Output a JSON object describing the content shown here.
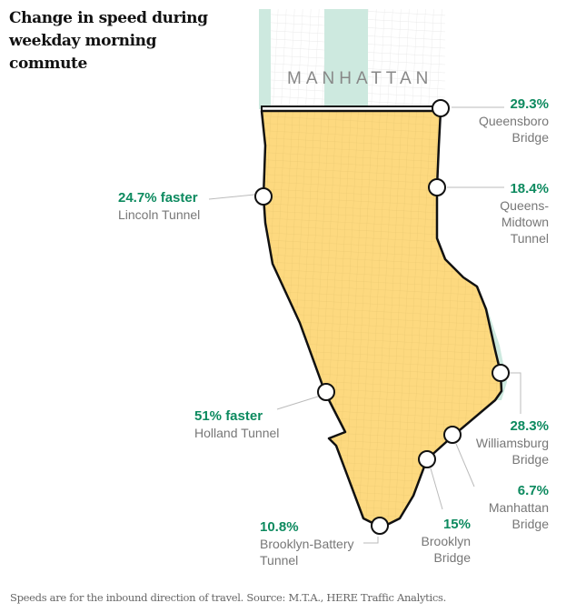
{
  "title": "Change in speed during weekday morning commute",
  "map_label": "MANHATTAN",
  "colors": {
    "zone": "#fdd97f",
    "park": "#cde9df",
    "accent": "#0d8a5f"
  },
  "crossings": [
    {
      "id": "queensboro",
      "pct": "29.3%",
      "name": [
        "Queensboro",
        "Bridge"
      ]
    },
    {
      "id": "queens-midtown",
      "pct": "18.4%",
      "name": [
        "Queens-",
        "Midtown",
        "Tunnel"
      ]
    },
    {
      "id": "lincoln",
      "pct": "24.7% faster",
      "name": [
        "Lincoln Tunnel"
      ]
    },
    {
      "id": "williamsburg",
      "pct": "28.3%",
      "name": [
        "Williamsburg",
        "Bridge"
      ]
    },
    {
      "id": "holland",
      "pct": "51% faster",
      "name": [
        "Holland Tunnel"
      ]
    },
    {
      "id": "manhattan",
      "pct": "6.7%",
      "name": [
        "Manhattan",
        "Bridge"
      ]
    },
    {
      "id": "brooklyn",
      "pct": "15%",
      "name": [
        "Brooklyn",
        "Bridge"
      ]
    },
    {
      "id": "brooklyn-battery",
      "pct": "10.8%",
      "name": [
        "Brooklyn-Battery",
        "Tunnel"
      ]
    }
  ],
  "note": "Speeds are for the inbound direction of travel. Source: M.T.A., HERE Traffic Analytics."
}
